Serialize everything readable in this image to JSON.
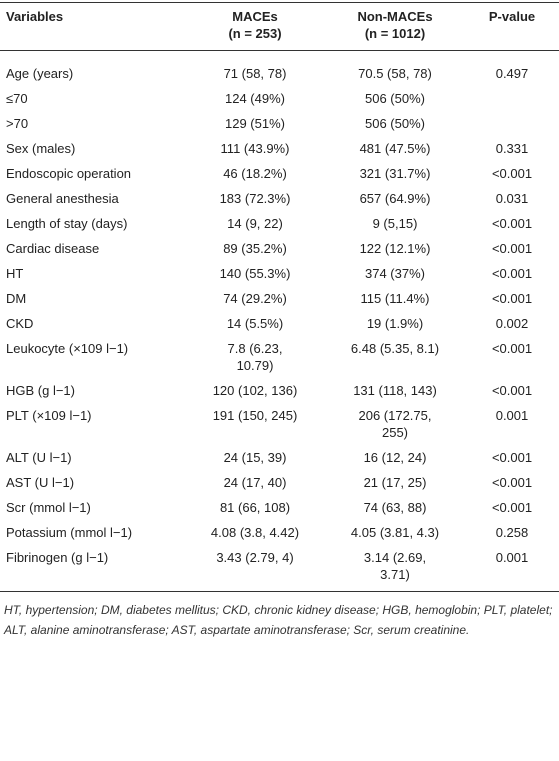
{
  "table": {
    "header": [
      {
        "line1": "Variables"
      },
      {
        "line1": "MACEs",
        "line2": "(n = 253)"
      },
      {
        "line1": "Non-MACEs",
        "line2": "(n = 1012)"
      },
      {
        "line1": "P-value"
      }
    ],
    "rows": [
      [
        "Age (years)",
        "71 (58, 78)",
        "70.5 (58, 78)",
        "0.497"
      ],
      [
        "≤70",
        "124 (49%)",
        "506 (50%)",
        ""
      ],
      [
        ">70",
        "129 (51%)",
        "506 (50%)",
        ""
      ],
      [
        "Sex (males)",
        "111 (43.9%)",
        "481 (47.5%)",
        "0.331"
      ],
      [
        "Endoscopic operation",
        "46 (18.2%)",
        "321 (31.7%)",
        "<0.001"
      ],
      [
        "General anesthesia",
        "183 (72.3%)",
        "657 (64.9%)",
        "0.031"
      ],
      [
        "Length of stay (days)",
        "14 (9, 22)",
        "9 (5,15)",
        "<0.001"
      ],
      [
        "Cardiac disease",
        "89 (35.2%)",
        "122 (12.1%)",
        "<0.001"
      ],
      [
        "HT",
        "140 (55.3%)",
        "374 (37%)",
        "<0.001"
      ],
      [
        "DM",
        "74 (29.2%)",
        "115 (11.4%)",
        "<0.001"
      ],
      [
        "CKD",
        "14 (5.5%)",
        "19 (1.9%)",
        "0.002"
      ],
      [
        "Leukocyte (×109 l−1)",
        "7.8 (6.23, 10.79)",
        "6.48 (5.35, 8.1)",
        "<0.001"
      ],
      [
        "HGB (g l−1)",
        "120 (102, 136)",
        "131 (118, 143)",
        "<0.001"
      ],
      [
        "PLT (×109 l−1)",
        "191 (150, 245)",
        "206 (172.75, 255)",
        "0.001"
      ],
      [
        "ALT (U l−1)",
        "24 (15, 39)",
        "16 (12, 24)",
        "<0.001"
      ],
      [
        "AST (U l−1)",
        "24 (17, 40)",
        "21 (17, 25)",
        "<0.001"
      ],
      [
        "Scr (mmol l−1)",
        "81 (66, 108)",
        "74 (63, 88)",
        "<0.001"
      ],
      [
        "Potassium (mmol l−1)",
        "4.08 (3.8, 4.42)",
        "4.05 (3.81, 4.3)",
        "0.258"
      ],
      [
        "Fibrinogen (g l−1)",
        "3.43 (2.79, 4)",
        "3.14 (2.69, 3.71)",
        "0.001"
      ]
    ]
  },
  "footnote": "HT, hypertension; DM, diabetes mellitus; CKD, chronic kidney disease; HGB, hemoglobin; PLT, platelet; ALT, alanine aminotransferase; AST, aspartate aminotransferase; Scr, serum creatinine."
}
